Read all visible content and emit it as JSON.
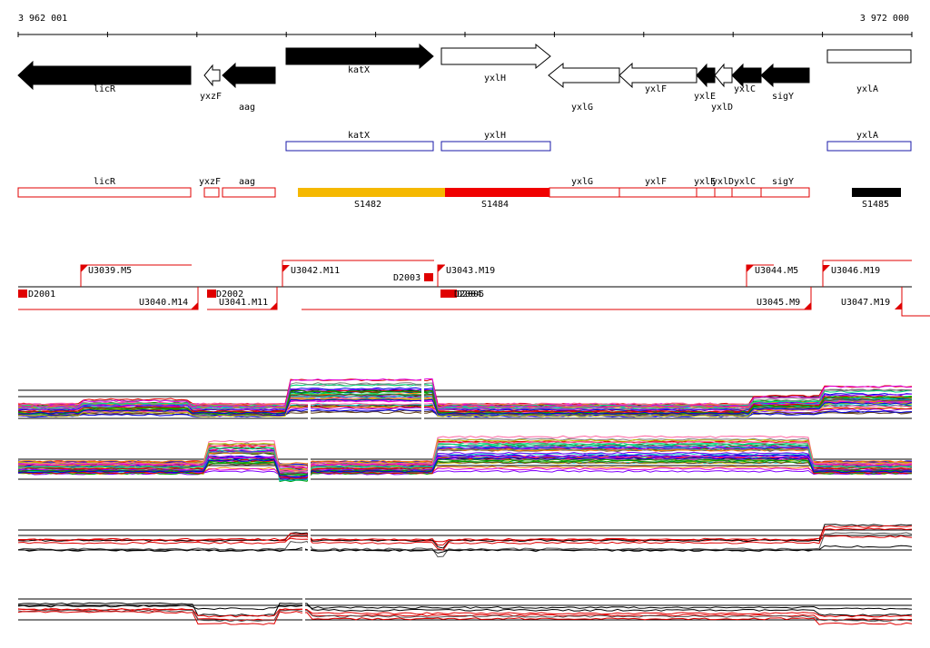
{
  "ruler": {
    "start": "3 962 001",
    "end": "3 972 000"
  },
  "genes": [
    "licR",
    "yxzF",
    "aag",
    "katX",
    "yxlH",
    "yxlG",
    "yxlF",
    "yxlE",
    "yxlD",
    "yxlC",
    "sigY",
    "yxlA"
  ],
  "operons_blue": [
    "katX",
    "yxlH",
    "yxlA"
  ],
  "operons_red": [
    "licR",
    "yxzF",
    "aag",
    "yxlG",
    "yxlF",
    "yxlE",
    "yxlD",
    "yxlC",
    "sigY"
  ],
  "segments": [
    "S1482",
    "S1484",
    "S1485"
  ],
  "tss_up": [
    "U3039.M5",
    "U3042.M11",
    "U3043.M19",
    "U3044.M5",
    "U3046.M19"
  ],
  "tss_down": [
    "U3040.M14",
    "U3041.M11",
    "U3045.M9",
    "U3047.M19"
  ],
  "terminators": [
    "D2001",
    "D2002",
    "D2003",
    "D2004",
    "D2005"
  ]
}
